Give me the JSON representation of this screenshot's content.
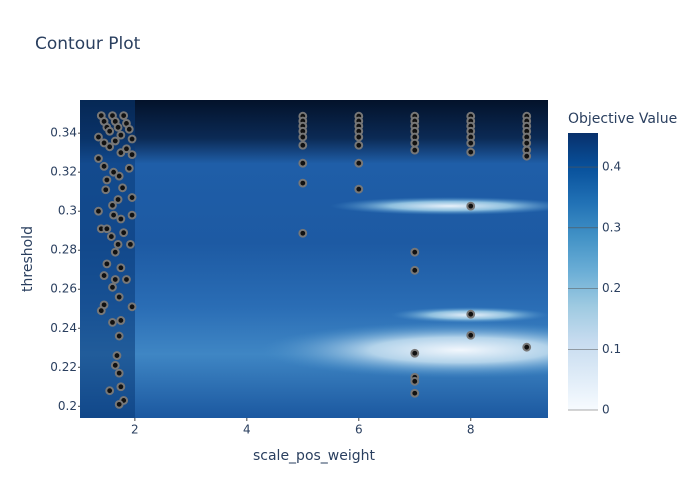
{
  "chart_data": {
    "type": "contour",
    "title": "Contour Plot",
    "x_label": "scale_pos_weight",
    "y_label": "threshold",
    "colorbar_title": "Objective Value",
    "xlim": [
      1.02,
      9.38
    ],
    "ylim": [
      0.194,
      0.357
    ],
    "xticks": [
      2,
      4,
      6,
      8
    ],
    "yticks": [
      0.2,
      0.22,
      0.24,
      0.26,
      0.28,
      0.3,
      0.32,
      0.34
    ],
    "zlim": [
      0,
      0.456
    ],
    "zticks": [
      0,
      0.1,
      0.2,
      0.3,
      0.4
    ],
    "colorscale": [
      [
        0,
        "#f7fbff"
      ],
      [
        0.125,
        "#deebf7"
      ],
      [
        0.25,
        "#c6dbef"
      ],
      [
        0.375,
        "#9ecae1"
      ],
      [
        0.5,
        "#6baed6"
      ],
      [
        0.625,
        "#4292c6"
      ],
      [
        0.75,
        "#2171b5"
      ],
      [
        0.875,
        "#08519c"
      ],
      [
        1,
        "#08306b"
      ]
    ],
    "marker_color": "#777777",
    "series": [
      {
        "x": [
          1.4,
          1.45,
          1.5,
          1.55,
          1.6,
          1.65,
          1.7,
          1.75,
          1.8,
          1.85,
          1.9,
          1.95,
          1.35,
          1.45,
          1.55,
          1.65,
          1.75,
          1.85,
          1.95,
          1.35,
          1.45,
          1.5,
          1.48,
          1.62,
          1.72,
          1.78,
          1.9,
          1.95,
          1.7,
          1.6,
          1.35,
          1.62,
          1.75,
          1.95,
          1.4,
          1.5,
          1.58,
          1.8,
          1.92,
          1.7,
          1.65,
          1.75,
          1.5,
          1.45,
          1.65,
          1.85,
          1.6,
          1.72,
          1.45,
          1.4,
          1.95,
          1.6,
          1.75,
          1.72,
          1.68,
          1.65,
          1.72,
          1.55,
          1.75,
          1.8,
          1.72,
          5,
          5,
          5,
          5,
          5,
          5,
          5,
          5,
          5,
          6,
          6,
          6,
          6,
          6,
          6,
          6,
          6,
          7,
          7,
          7,
          7,
          7,
          7,
          7,
          7,
          7,
          7,
          7,
          7,
          7,
          8,
          8,
          8,
          8,
          8,
          8,
          8,
          8,
          8,
          8,
          9,
          9,
          9,
          9,
          9,
          9,
          9,
          9,
          9
        ],
        "y": [
          0.349,
          0.346,
          0.343,
          0.341,
          0.349,
          0.346,
          0.343,
          0.339,
          0.349,
          0.345,
          0.342,
          0.337,
          0.338,
          0.335,
          0.333,
          0.336,
          0.33,
          0.332,
          0.329,
          0.327,
          0.323,
          0.316,
          0.311,
          0.32,
          0.318,
          0.312,
          0.322,
          0.307,
          0.306,
          0.303,
          0.3,
          0.298,
          0.296,
          0.298,
          0.291,
          0.291,
          0.287,
          0.289,
          0.283,
          0.283,
          0.279,
          0.271,
          0.273,
          0.267,
          0.265,
          0.265,
          0.261,
          0.256,
          0.252,
          0.249,
          0.251,
          0.243,
          0.244,
          0.236,
          0.226,
          0.221,
          0.217,
          0.208,
          0.21,
          0.203,
          0.201,
          0.3487,
          0.3462,
          0.3436,
          0.341,
          0.338,
          0.3338,
          0.3246,
          0.3144,
          0.2887,
          0.3487,
          0.3462,
          0.3436,
          0.341,
          0.338,
          0.3338,
          0.3246,
          0.3113,
          0.3487,
          0.3462,
          0.3436,
          0.341,
          0.338,
          0.3349,
          0.3313,
          0.279,
          0.2697,
          0.2272,
          0.2149,
          0.2128,
          0.2067,
          0.3487,
          0.3462,
          0.3436,
          0.341,
          0.338,
          0.3349,
          0.3303,
          0.3026,
          0.2472,
          0.2364,
          0.3487,
          0.3462,
          0.3436,
          0.341,
          0.338,
          0.3349,
          0.3313,
          0.3282,
          0.2303
        ]
      }
    ]
  }
}
